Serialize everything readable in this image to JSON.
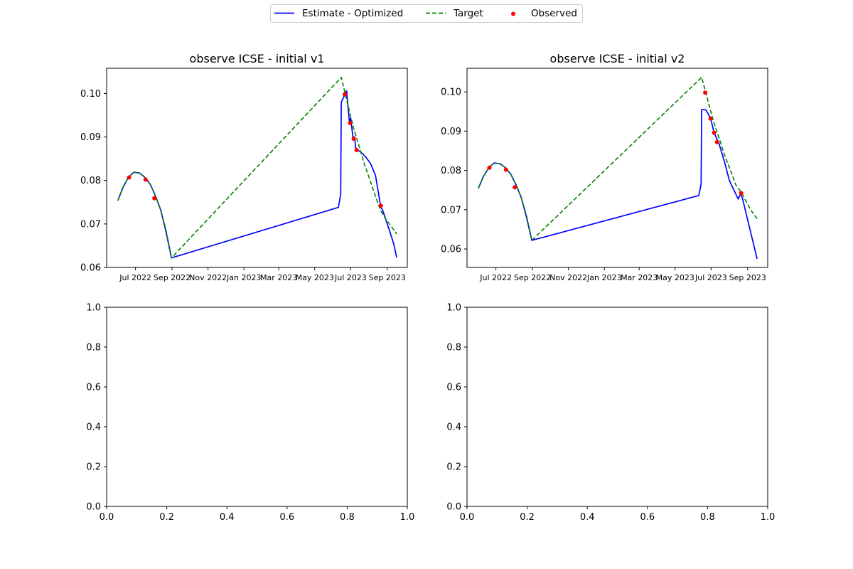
{
  "legend": {
    "placement": "top-center",
    "entries": [
      {
        "label": "Estimate - Optimized",
        "color": "#0000ff",
        "style": "solid line"
      },
      {
        "label": "Target",
        "color": "#008000",
        "style": "dashed line"
      },
      {
        "label": "Observed",
        "color": "#ff0000",
        "style": "dot"
      }
    ]
  },
  "chart_data": [
    {
      "type": "line",
      "title": "observe ICSE - initial v1",
      "xlabel": "",
      "ylabel": "",
      "x_ticks": [
        "Jul 2022",
        "Sep 2022",
        "Nov 2022",
        "Jan 2023",
        "Mar 2023",
        "May 2023",
        "Jul 2023",
        "Sep 2023"
      ],
      "xlim": [
        "2022-05-13",
        "2023-10-05"
      ],
      "ylim": [
        0.06,
        0.1058
      ],
      "y_ticks": [
        "0.06",
        "0.07",
        "0.08",
        "0.09",
        "0.10"
      ],
      "grid": false,
      "series": [
        {
          "name": "Estimate - Optimized",
          "color": "#0000ff",
          "dash": "solid",
          "x": [
            "2022-06-01",
            "2022-06-10",
            "2022-06-19",
            "2022-06-28",
            "2022-07-08",
            "2022-07-17",
            "2022-07-26",
            "2022-08-04",
            "2022-08-13",
            "2022-08-22",
            "2022-08-31",
            "2023-06-10",
            "2023-06-14",
            "2023-06-15",
            "2023-06-24",
            "2023-06-29",
            "2023-06-30",
            "2023-07-01",
            "2023-07-05",
            "2023-07-06",
            "2023-07-08",
            "2023-07-09",
            "2023-07-14",
            "2023-07-20",
            "2023-07-27",
            "2023-08-04",
            "2023-08-12",
            "2023-08-21",
            "2023-08-24",
            "2023-08-28",
            "2023-09-04",
            "2023-09-12",
            "2023-09-17"
          ],
          "values": [
            0.0754,
            0.0785,
            0.0807,
            0.0819,
            0.0817,
            0.0807,
            0.0791,
            0.0764,
            0.0731,
            0.068,
            0.0622,
            0.0738,
            0.0768,
            0.098,
            0.1006,
            0.0932,
            0.0942,
            0.0943,
            0.0896,
            0.09,
            0.09,
            0.0876,
            0.0869,
            0.0863,
            0.0853,
            0.0838,
            0.0812,
            0.0739,
            0.0732,
            0.0716,
            0.0688,
            0.0654,
            0.0623
          ]
        },
        {
          "name": "Target",
          "color": "#008000",
          "dash": "dashed",
          "x": [
            "2022-06-01",
            "2022-06-10",
            "2022-06-19",
            "2022-06-28",
            "2022-07-08",
            "2022-07-17",
            "2022-07-26",
            "2022-08-04",
            "2022-08-13",
            "2022-08-22",
            "2022-08-31",
            "2023-06-15",
            "2023-06-22",
            "2023-06-29",
            "2023-07-06",
            "2023-07-15",
            "2023-07-24",
            "2023-08-03",
            "2023-08-12",
            "2023-08-21",
            "2023-08-30",
            "2023-09-06",
            "2023-09-17"
          ],
          "values": [
            0.0754,
            0.0785,
            0.0807,
            0.0819,
            0.0817,
            0.0807,
            0.0791,
            0.0764,
            0.0731,
            0.0684,
            0.0622,
            0.1037,
            0.0998,
            0.0958,
            0.092,
            0.088,
            0.0838,
            0.08,
            0.0763,
            0.073,
            0.071,
            0.0698,
            0.0677
          ]
        },
        {
          "name": "Observed",
          "color": "#ff0000",
          "dash": "none",
          "x": [
            "2022-06-20",
            "2022-07-18",
            "2022-08-02",
            "2023-06-21",
            "2023-06-30",
            "2023-07-06",
            "2023-07-11",
            "2023-08-21"
          ],
          "values": [
            0.0807,
            0.0802,
            0.0759,
            0.0998,
            0.0932,
            0.0896,
            0.087,
            0.0742
          ]
        }
      ]
    },
    {
      "type": "line",
      "title": "observe ICSE - initial v2",
      "xlabel": "",
      "ylabel": "",
      "x_ticks": [
        "Jul 2022",
        "Sep 2022",
        "Nov 2022",
        "Jan 2023",
        "Mar 2023",
        "May 2023",
        "Jul 2023",
        "Sep 2023"
      ],
      "xlim": [
        "2022-05-13",
        "2023-10-05"
      ],
      "ylim": [
        0.0553,
        0.106
      ],
      "y_ticks": [
        "0.06",
        "0.07",
        "0.08",
        "0.09",
        "0.10"
      ],
      "grid": false,
      "series": [
        {
          "name": "Estimate - Optimized",
          "color": "#0000ff",
          "dash": "solid",
          "x": [
            "2022-06-01",
            "2022-06-10",
            "2022-06-19",
            "2022-06-28",
            "2022-07-08",
            "2022-07-17",
            "2022-07-26",
            "2022-08-04",
            "2022-08-13",
            "2022-08-22",
            "2022-08-31",
            "2023-06-10",
            "2023-06-14",
            "2023-06-15",
            "2023-06-22",
            "2023-06-30",
            "2023-07-06",
            "2023-07-14",
            "2023-07-24",
            "2023-08-01",
            "2023-08-16",
            "2023-08-20",
            "2023-08-23",
            "2023-09-17"
          ],
          "values": [
            0.0754,
            0.0785,
            0.0807,
            0.0819,
            0.0817,
            0.0807,
            0.0791,
            0.0764,
            0.0731,
            0.068,
            0.0622,
            0.0736,
            0.0765,
            0.0955,
            0.0954,
            0.0934,
            0.0896,
            0.087,
            0.082,
            0.0774,
            0.0727,
            0.074,
            0.073,
            0.0575
          ]
        },
        {
          "name": "Target",
          "color": "#008000",
          "dash": "dashed",
          "x": [
            "2022-06-01",
            "2022-06-10",
            "2022-06-19",
            "2022-06-28",
            "2022-07-08",
            "2022-07-17",
            "2022-07-26",
            "2022-08-04",
            "2022-08-13",
            "2022-08-22",
            "2022-08-31",
            "2023-06-15",
            "2023-06-22",
            "2023-06-29",
            "2023-07-06",
            "2023-07-15",
            "2023-07-24",
            "2023-08-03",
            "2023-08-12",
            "2023-08-21",
            "2023-08-30",
            "2023-09-06",
            "2023-09-17"
          ],
          "values": [
            0.0754,
            0.0785,
            0.0807,
            0.0819,
            0.0817,
            0.0807,
            0.0791,
            0.0764,
            0.0731,
            0.0684,
            0.0622,
            0.1037,
            0.0998,
            0.0958,
            0.092,
            0.088,
            0.0838,
            0.08,
            0.0763,
            0.0744,
            0.072,
            0.07,
            0.0677
          ]
        },
        {
          "name": "Observed",
          "color": "#ff0000",
          "dash": "none",
          "x": [
            "2022-06-20",
            "2022-07-18",
            "2022-08-02",
            "2023-06-21",
            "2023-06-30",
            "2023-07-06",
            "2023-07-11",
            "2023-08-21"
          ],
          "values": [
            0.0807,
            0.0802,
            0.0757,
            0.0998,
            0.0932,
            0.0896,
            0.0872,
            0.0742
          ]
        }
      ]
    },
    {
      "type": "line",
      "title": "",
      "xlabel": "",
      "ylabel": "",
      "xlim": [
        0,
        1
      ],
      "ylim": [
        0,
        1
      ],
      "x_ticks": [
        "0.0",
        "0.2",
        "0.4",
        "0.6",
        "0.8",
        "1.0"
      ],
      "y_ticks": [
        "0.0",
        "0.2",
        "0.4",
        "0.6",
        "0.8",
        "1.0"
      ],
      "grid": false,
      "series": []
    },
    {
      "type": "line",
      "title": "",
      "xlabel": "",
      "ylabel": "",
      "xlim": [
        0,
        1
      ],
      "ylim": [
        0,
        1
      ],
      "x_ticks": [
        "0.0",
        "0.2",
        "0.4",
        "0.6",
        "0.8",
        "1.0"
      ],
      "y_ticks": [
        "0.0",
        "0.2",
        "0.4",
        "0.6",
        "0.8",
        "1.0"
      ],
      "grid": false,
      "series": []
    }
  ]
}
